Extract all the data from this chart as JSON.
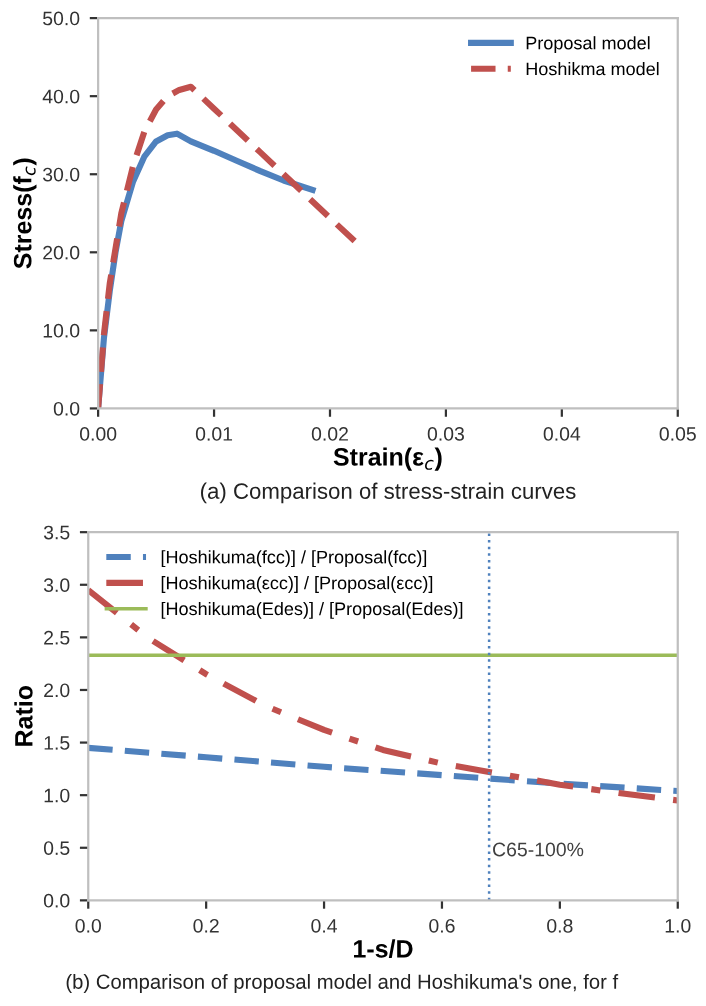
{
  "chart_data": [
    {
      "type": "line",
      "xlabel": "Strain(ε$_{c}$)",
      "ylabel": "Stress(f$_{c}$)",
      "annotations": [
        "(a) Comparison of stress-strain curves"
      ],
      "xlim": [
        0,
        0.05
      ],
      "xticks": [
        {
          "value": 0,
          "label": "0.00"
        },
        {
          "value": 0.01,
          "label": "0.01"
        },
        {
          "value": 0.02,
          "label": "0.02"
        },
        {
          "value": 0.03,
          "label": "0.03"
        },
        {
          "value": 0.04,
          "label": "0.04"
        },
        {
          "value": 0.05,
          "label": "0.05"
        }
      ],
      "ylim": [
        0,
        50
      ],
      "yticks": [
        {
          "value": 0,
          "label": "0.0"
        },
        {
          "value": 10,
          "label": "10.0"
        },
        {
          "value": 20,
          "label": "20.0"
        },
        {
          "value": 30,
          "label": "30.0"
        },
        {
          "value": 40,
          "label": "40.0"
        },
        {
          "value": 50,
          "label": "50.0"
        }
      ],
      "grid": false,
      "legend": "top right",
      "series": [
        {
          "name": "Proposal model",
          "color": "#4f81bd",
          "line_style": "solid",
          "x": [
            0,
            0.0005,
            0.001,
            0.0015,
            0.002,
            0.003,
            0.004,
            0.005,
            0.006,
            0.0068,
            0.008,
            0.01,
            0.012,
            0.014,
            0.016,
            0.0185
          ],
          "values": [
            0,
            9,
            15,
            20,
            24,
            29,
            32.3,
            34.2,
            35,
            35.2,
            34.2,
            33,
            31.7,
            30.4,
            29.2,
            28
          ]
        },
        {
          "name": "Hoshikma model",
          "color": "#c0504d",
          "line_style": "dashed",
          "x": [
            0,
            0.0005,
            0.001,
            0.002,
            0.003,
            0.004,
            0.005,
            0.006,
            0.007,
            0.008,
            0.01,
            0.012,
            0.014,
            0.016,
            0.018,
            0.02,
            0.0228
          ],
          "values": [
            0,
            9.5,
            16,
            25,
            31,
            35.5,
            38.3,
            40,
            40.8,
            41.2,
            38.4,
            35.6,
            32.8,
            30,
            27.2,
            24.4,
            20.5
          ]
        }
      ]
    },
    {
      "type": "line",
      "xlabel": "1-s/D",
      "ylabel": "Ratio",
      "annotations": [
        "(b) Comparison of proposal model and Hoshikuma's one, for f"
      ],
      "xlim": [
        0,
        1
      ],
      "xticks": [
        {
          "value": 0,
          "label": "0.0"
        },
        {
          "value": 0.2,
          "label": "0.2"
        },
        {
          "value": 0.4,
          "label": "0.4"
        },
        {
          "value": 0.6,
          "label": "0.6"
        },
        {
          "value": 0.8,
          "label": "0.8"
        },
        {
          "value": 1,
          "label": "1.0"
        }
      ],
      "ylim": [
        0,
        3.5
      ],
      "yticks": [
        {
          "value": 0,
          "label": "0.0"
        },
        0.5,
        {
          "value": 1,
          "label": "1.0"
        },
        1.5,
        {
          "value": 2,
          "label": "2.0"
        },
        2.5,
        {
          "value": 3,
          "label": "3.0"
        },
        3.5
      ],
      "grid": false,
      "legend": "top left",
      "ref_lines": [
        {
          "axis": "x",
          "value": 0.68,
          "label": "C65-100%",
          "color": "#4f81bd",
          "line_style": "dotted"
        }
      ],
      "series": [
        {
          "name": "[Hoshikuma(fcc)] / [Proposal(fcc)]",
          "color": "#4f81bd",
          "line_style": "dashed",
          "x": [
            0,
            0.2,
            0.4,
            0.6,
            0.8,
            1.0
          ],
          "values": [
            1.45,
            1.36,
            1.27,
            1.19,
            1.11,
            1.04
          ]
        },
        {
          "name": "[Hoshikuma(εcc)] / [Proposal(εcc)]",
          "color": "#c0504d",
          "line_style": "dashdot",
          "x": [
            0,
            0.1,
            0.2,
            0.3,
            0.4,
            0.5,
            0.6,
            0.7,
            0.8,
            0.9,
            1.0
          ],
          "values": [
            2.95,
            2.5,
            2.15,
            1.85,
            1.62,
            1.43,
            1.3,
            1.2,
            1.1,
            1.02,
            0.95
          ]
        },
        {
          "name": "[Hoshikuma(Edes)] / [Proposal(Edes)]",
          "color": "#9bbb59",
          "line_style": "solid",
          "x": [
            0,
            1.0
          ],
          "values": [
            2.33,
            2.33
          ]
        }
      ]
    }
  ]
}
